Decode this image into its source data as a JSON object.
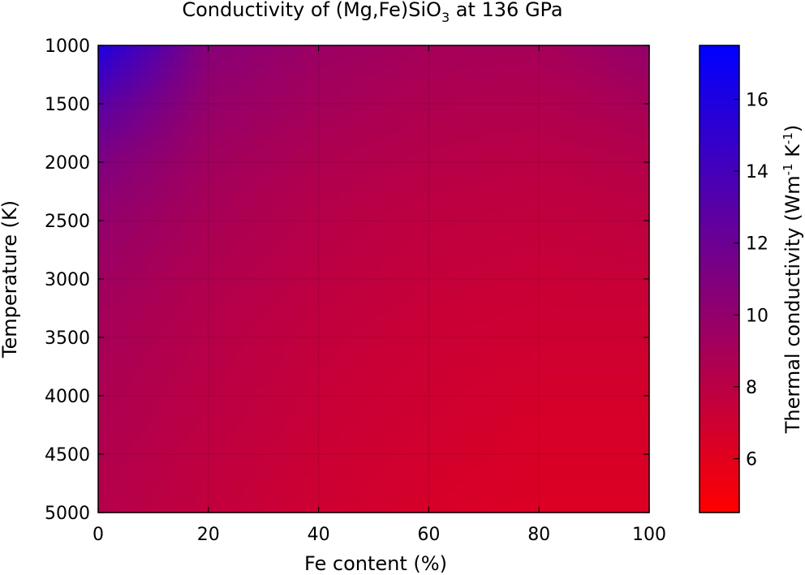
{
  "chart_data": {
    "type": "heatmap",
    "title_parts": {
      "pre": "Conductivity of (Mg,Fe)SiO",
      "sub": "3",
      "post": " at 136 GPa"
    },
    "xlabel": "Fe content (%)",
    "ylabel": "Temperature (K)",
    "colorbar_label_parts": {
      "a": "Thermal conductivity (Wm",
      "b": "-1",
      "c": " K",
      "d": "-1",
      "e": ")"
    },
    "xlim": [
      0,
      100
    ],
    "ylim": [
      1000,
      5000
    ],
    "y_inverted": true,
    "x_ticks": [
      "0",
      "20",
      "40",
      "60",
      "80",
      "100"
    ],
    "x_tick_values": [
      0,
      20,
      40,
      60,
      80,
      100
    ],
    "y_ticks": [
      "1000",
      "1500",
      "2000",
      "2500",
      "3000",
      "3500",
      "4000",
      "4500",
      "5000"
    ],
    "y_tick_values": [
      1000,
      1500,
      2000,
      2500,
      3000,
      3500,
      4000,
      4500,
      5000
    ],
    "colorbar_ticks": [
      "6",
      "8",
      "10",
      "12",
      "14",
      "16"
    ],
    "colorbar_tick_values": [
      6,
      8,
      10,
      12,
      14,
      16
    ],
    "color_range": [
      4.5,
      17.5
    ],
    "colormap": [
      "#ff0000",
      "#0000ff"
    ],
    "grid": true,
    "x": [
      0,
      20,
      40,
      60,
      80,
      100
    ],
    "y": [
      1000,
      1500,
      2000,
      2500,
      3000,
      3500,
      4000,
      4500,
      5000
    ],
    "z": [
      [
        16.0,
        10.6,
        9.6,
        9.1,
        9.0,
        10.0
      ],
      [
        13.0,
        9.9,
        9.1,
        8.6,
        8.5,
        9.0
      ],
      [
        11.0,
        9.3,
        8.6,
        8.2,
        8.0,
        8.3
      ],
      [
        10.0,
        8.9,
        8.2,
        7.8,
        7.6,
        7.8
      ],
      [
        9.4,
        8.5,
        7.9,
        7.5,
        7.3,
        7.4
      ],
      [
        9.0,
        8.2,
        7.6,
        7.2,
        7.0,
        7.0
      ],
      [
        8.7,
        8.0,
        7.4,
        7.0,
        6.7,
        6.7
      ],
      [
        8.5,
        7.8,
        7.2,
        6.8,
        6.5,
        6.5
      ],
      [
        8.3,
        7.6,
        7.0,
        6.6,
        6.3,
        6.3
      ]
    ]
  }
}
